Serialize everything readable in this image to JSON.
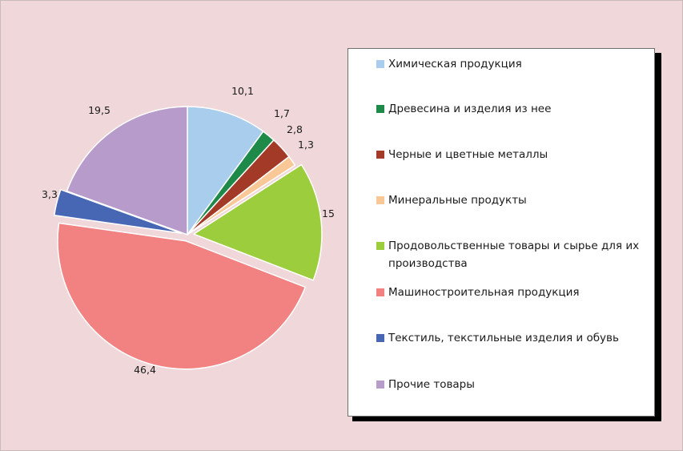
{
  "chart_data": {
    "type": "pie",
    "title": "",
    "values": [
      10.1,
      1.7,
      2.8,
      1.3,
      15,
      46.4,
      3.3,
      19.5
    ],
    "data_labels": [
      "10,1",
      "1,7",
      "2,8",
      "1,3",
      "15",
      "46,4",
      "3,3",
      "19,5"
    ],
    "categories": [
      "Химическая продукция",
      "Древесина и изделия из нее",
      "Черные и цветные металлы",
      "Минеральные продукты",
      "Продовольственные товары и сырье для их производства",
      "Машиностроительная продукция",
      "Текстиль, текстильные изделия и обувь",
      "Прочие товары"
    ],
    "colors": [
      "#a9cdec",
      "#1e8a4a",
      "#a33a28",
      "#f9c896",
      "#9ccd3c",
      "#f28181",
      "#4767b5",
      "#b79bcb"
    ],
    "exploded": [
      false,
      false,
      false,
      false,
      true,
      true,
      true,
      false
    ],
    "start_angle_deg": 0,
    "direction": "clockwise",
    "legend": {
      "position": "right",
      "items": [
        {
          "label": "Химическая продукция",
          "color": "#a9cdec"
        },
        {
          "label": "Древесина и изделия из нее",
          "color": "#1e8a4a"
        },
        {
          "label": "Черные и цветные металлы",
          "color": "#a33a28"
        },
        {
          "label": "Минеральные продукты",
          "color": "#f9c896"
        },
        {
          "label": "Продовольственные товары и сырье для их производства",
          "color": "#9ccd3c"
        },
        {
          "label": "Машиностроительная продукция",
          "color": "#f28181"
        },
        {
          "label": "Текстиль, текстильные изделия и обувь",
          "color": "#4767b5"
        },
        {
          "label": "Прочие товары",
          "color": "#b79bcb"
        }
      ]
    }
  }
}
